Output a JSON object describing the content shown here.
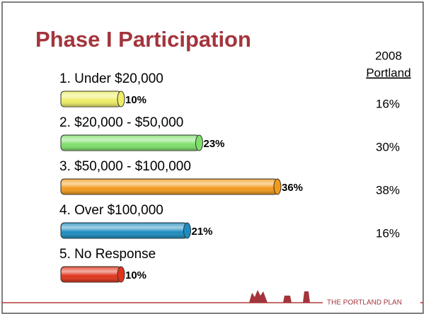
{
  "title": "Phase I Participation",
  "comparison": {
    "header": [
      "2008",
      "Portland"
    ],
    "labels": [
      "16%",
      "30%",
      "38%",
      "16%"
    ]
  },
  "logo": "THE PORTLAND PLAN",
  "chart_data": {
    "type": "bar",
    "orientation": "horizontal",
    "categories": [
      "1.  Under $20,000",
      "2.  $20,000 - $50,000",
      "3.  $50,000 - $100,000",
      "4.  Over $100,000",
      "5.  No Response"
    ],
    "values": [
      10,
      23,
      36,
      21,
      10
    ],
    "value_labels": [
      "10%",
      "23%",
      "36%",
      "21%",
      "10%"
    ],
    "colors": [
      "#eeee66",
      "#7ee06a",
      "#f29a1c",
      "#1e8cc0",
      "#e0341c"
    ]
  }
}
